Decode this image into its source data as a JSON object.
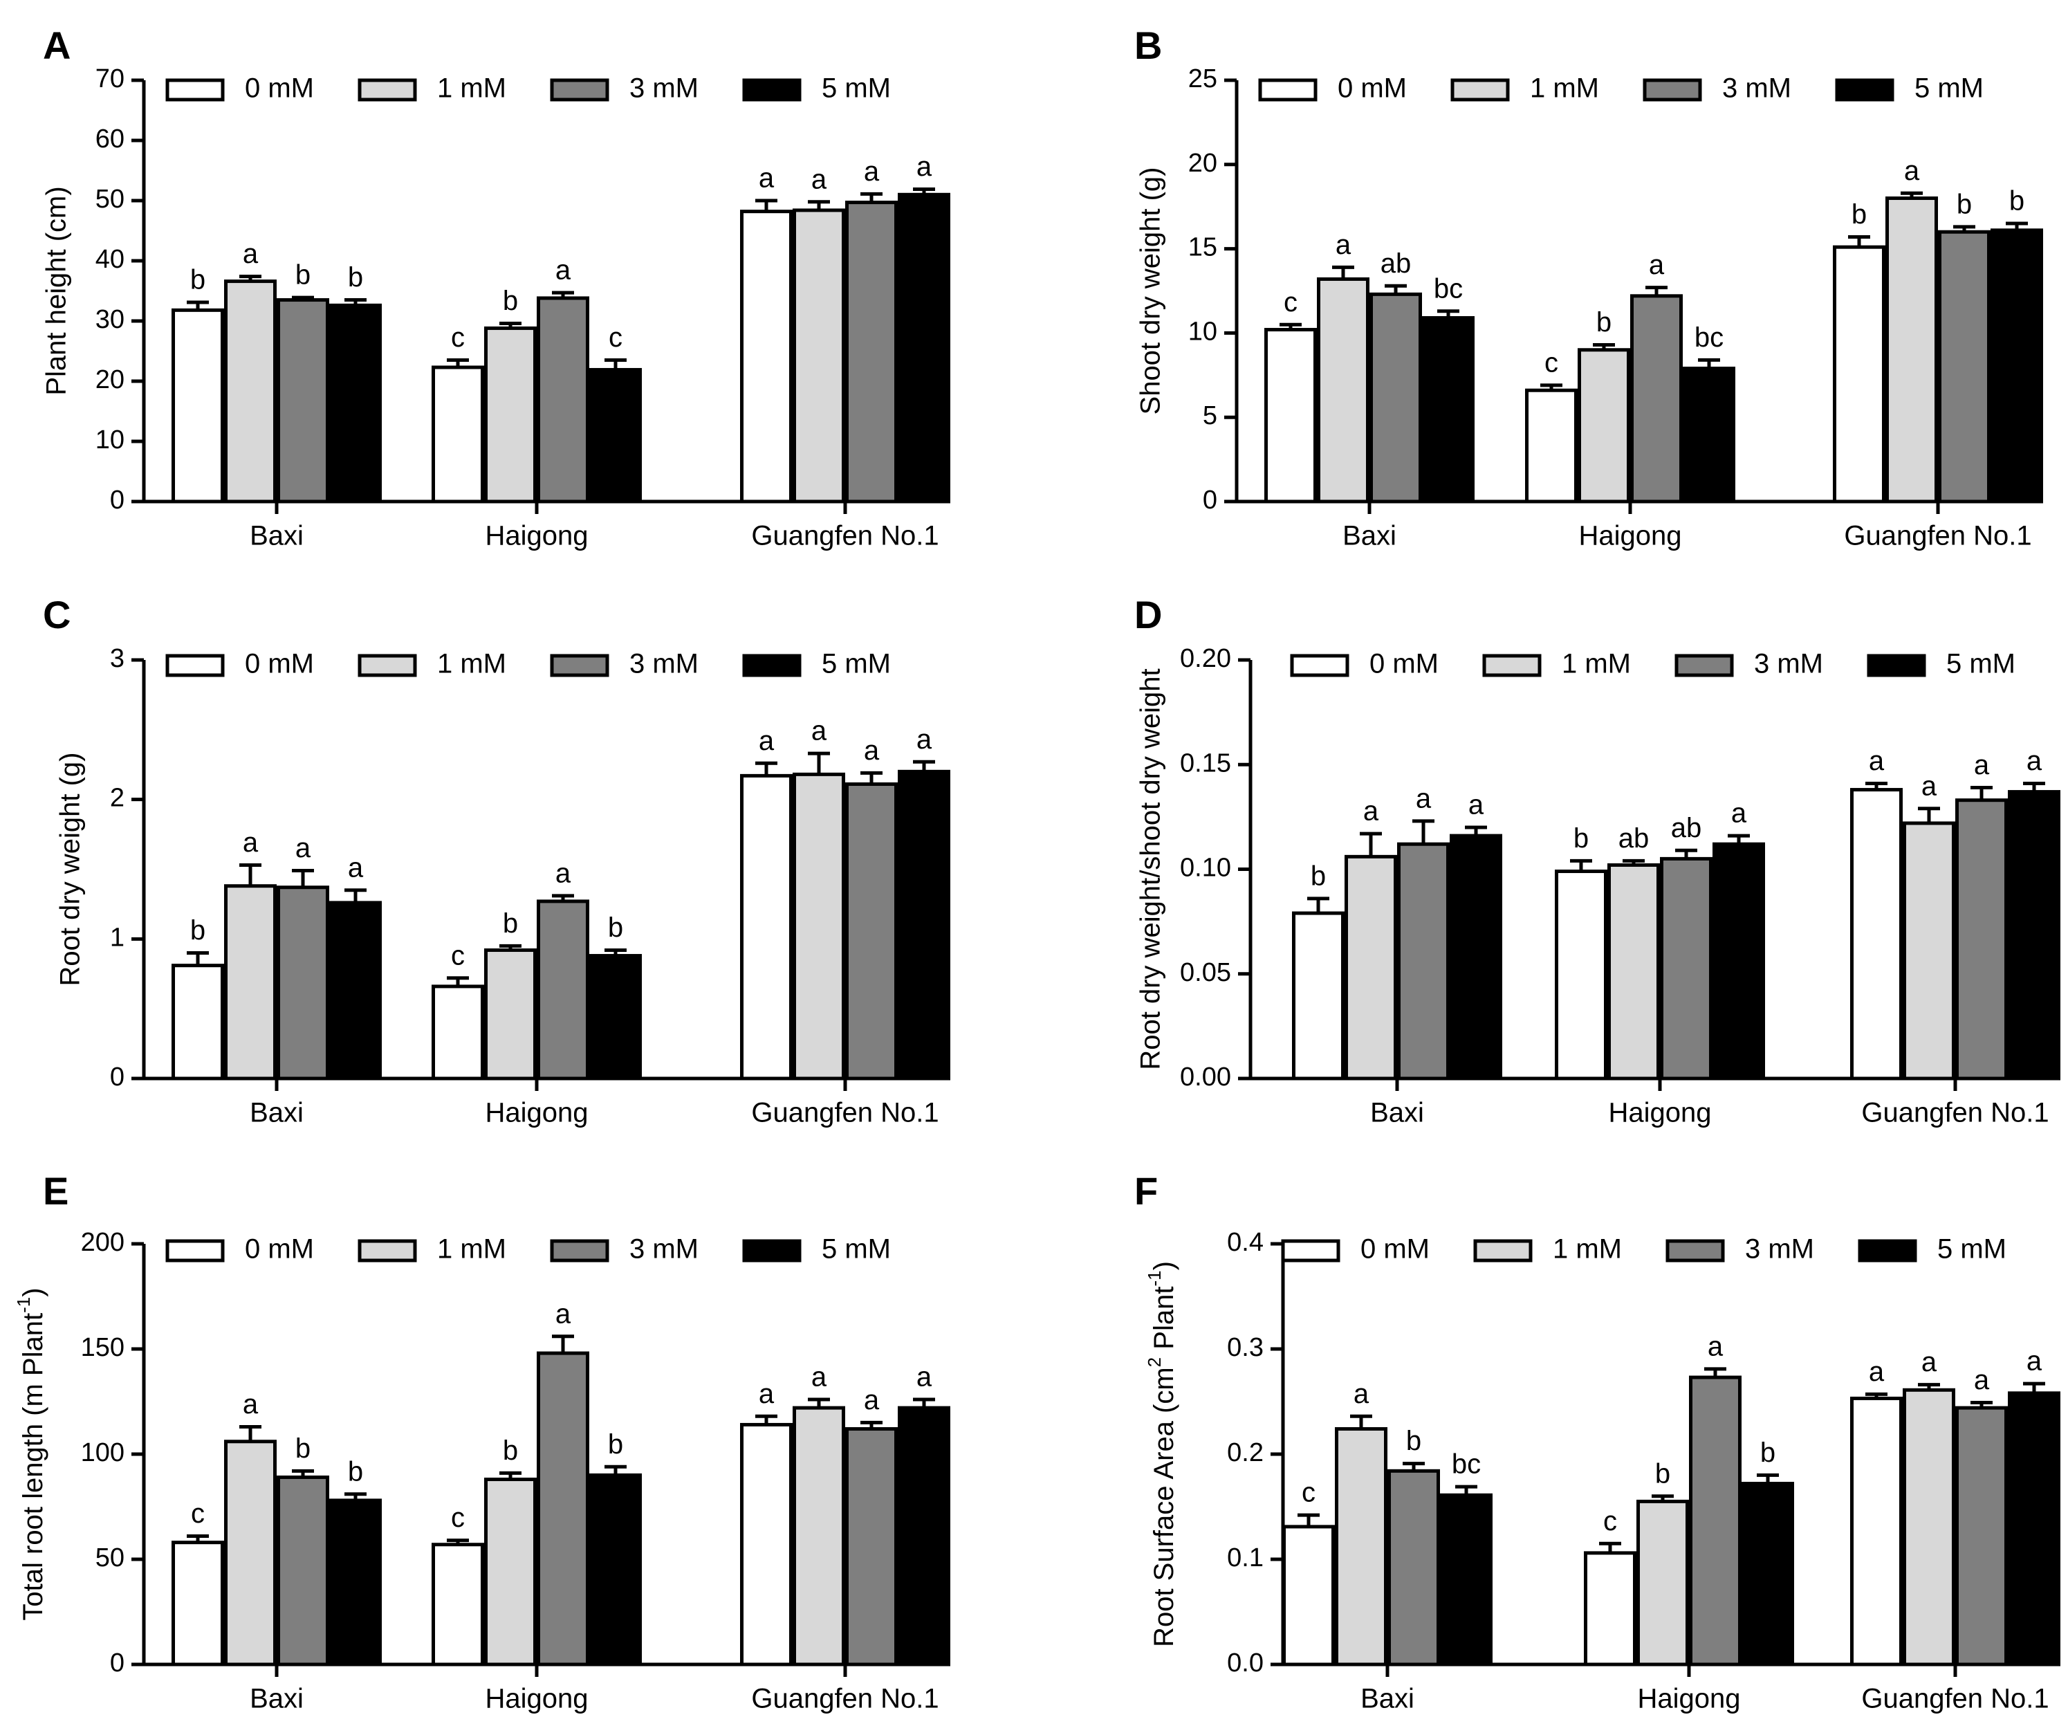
{
  "legend_labels": [
    "0 mM",
    "1 mM",
    "3 mM",
    "5 mM"
  ],
  "colors": {
    "series": [
      "#ffffff",
      "#d8d8d8",
      "#7f7f7f",
      "#000000"
    ],
    "stroke": "#000000",
    "text": "#000000"
  },
  "chart_data": [
    {
      "panel": "A",
      "type": "bar",
      "categories": [
        "Baxi",
        "Haigong",
        "Guangfen No.1"
      ],
      "ylabel": "Plant height (cm)",
      "xlabel": "",
      "ylim": [
        0,
        70
      ],
      "yticks": [
        0,
        10,
        20,
        30,
        40,
        50,
        60,
        70
      ],
      "ytick_labels": [
        "0",
        "10",
        "20",
        "30",
        "40",
        "50",
        "60",
        "70"
      ],
      "series": [
        {
          "name": "0 mM",
          "values": [
            31.8,
            22.3,
            48.2
          ],
          "errors": [
            1.3,
            1.2,
            1.8
          ],
          "letters": [
            "b",
            "c",
            "a"
          ]
        },
        {
          "name": "1 mM",
          "values": [
            36.6,
            28.8,
            48.4
          ],
          "errors": [
            0.8,
            0.8,
            1.4
          ],
          "letters": [
            "a",
            "b",
            "a"
          ]
        },
        {
          "name": "3 mM",
          "values": [
            33.5,
            33.8,
            49.7
          ],
          "errors": [
            0.4,
            0.9,
            1.4
          ],
          "letters": [
            "b",
            "a",
            "a"
          ]
        },
        {
          "name": "5 mM",
          "values": [
            32.6,
            21.9,
            51.0
          ],
          "errors": [
            0.9,
            1.6,
            0.9
          ],
          "letters": [
            "b",
            "c",
            "a"
          ]
        }
      ]
    },
    {
      "panel": "B",
      "type": "bar",
      "categories": [
        "Baxi",
        "Haigong",
        "Guangfen No.1"
      ],
      "ylabel": "Shoot dry weight (g)",
      "xlabel": "",
      "ylim": [
        0,
        25
      ],
      "yticks": [
        0,
        5,
        10,
        15,
        20,
        25
      ],
      "ytick_labels": [
        "0",
        "5",
        "10",
        "15",
        "20",
        "25"
      ],
      "series": [
        {
          "name": "0 mM",
          "values": [
            10.2,
            6.6,
            15.1
          ],
          "errors": [
            0.3,
            0.3,
            0.6
          ],
          "letters": [
            "c",
            "c",
            "b"
          ]
        },
        {
          "name": "1 mM",
          "values": [
            13.2,
            9.0,
            18.0
          ],
          "errors": [
            0.7,
            0.3,
            0.3
          ],
          "letters": [
            "a",
            "b",
            "a"
          ]
        },
        {
          "name": "3 mM",
          "values": [
            12.3,
            12.2,
            16.0
          ],
          "errors": [
            0.5,
            0.5,
            0.3
          ],
          "letters": [
            "ab",
            "a",
            "b"
          ]
        },
        {
          "name": "5 mM",
          "values": [
            10.9,
            7.9,
            16.1
          ],
          "errors": [
            0.4,
            0.5,
            0.4
          ],
          "letters": [
            "bc",
            "bc",
            "b"
          ]
        }
      ]
    },
    {
      "panel": "C",
      "type": "bar",
      "categories": [
        "Baxi",
        "Haigong",
        "Guangfen No.1"
      ],
      "ylabel": "Root dry weight (g)",
      "xlabel": "",
      "ylim": [
        0,
        3
      ],
      "yticks": [
        0,
        1,
        2,
        3
      ],
      "ytick_labels": [
        "0",
        "1",
        "2",
        "3"
      ],
      "series": [
        {
          "name": "0 mM",
          "values": [
            0.81,
            0.66,
            2.17
          ],
          "errors": [
            0.09,
            0.06,
            0.09
          ],
          "letters": [
            "b",
            "c",
            "a"
          ]
        },
        {
          "name": "1 mM",
          "values": [
            1.38,
            0.92,
            2.18
          ],
          "errors": [
            0.15,
            0.03,
            0.15
          ],
          "letters": [
            "a",
            "b",
            "a"
          ]
        },
        {
          "name": "3 mM",
          "values": [
            1.37,
            1.27,
            2.11
          ],
          "errors": [
            0.12,
            0.04,
            0.08
          ],
          "letters": [
            "a",
            "a",
            "a"
          ]
        },
        {
          "name": "5 mM",
          "values": [
            1.26,
            0.88,
            2.2
          ],
          "errors": [
            0.09,
            0.04,
            0.07
          ],
          "letters": [
            "a",
            "b",
            "a"
          ]
        }
      ]
    },
    {
      "panel": "D",
      "type": "bar",
      "categories": [
        "Baxi",
        "Haigong",
        "Guangfen No.1"
      ],
      "ylabel": "Root dry weight/shoot dry weight",
      "xlabel": "",
      "ylim": [
        0,
        0.2
      ],
      "yticks": [
        0,
        0.05,
        0.1,
        0.15,
        0.2
      ],
      "ytick_labels": [
        "0.00",
        "0.05",
        "0.10",
        "0.15",
        "0.20"
      ],
      "series": [
        {
          "name": "0 mM",
          "values": [
            0.079,
            0.099,
            0.138
          ],
          "errors": [
            0.007,
            0.005,
            0.003
          ],
          "letters": [
            "b",
            "b",
            "a"
          ]
        },
        {
          "name": "1 mM",
          "values": [
            0.106,
            0.102,
            0.122
          ],
          "errors": [
            0.011,
            0.002,
            0.007
          ],
          "letters": [
            "a",
            "ab",
            "a"
          ]
        },
        {
          "name": "3 mM",
          "values": [
            0.112,
            0.105,
            0.133
          ],
          "errors": [
            0.011,
            0.004,
            0.006
          ],
          "letters": [
            "a",
            "ab",
            "a"
          ]
        },
        {
          "name": "5 mM",
          "values": [
            0.116,
            0.112,
            0.137
          ],
          "errors": [
            0.004,
            0.004,
            0.004
          ],
          "letters": [
            "a",
            "a",
            "a"
          ]
        }
      ]
    },
    {
      "panel": "E",
      "type": "bar",
      "categories": [
        "Baxi",
        "Haigong",
        "Guangfen No.1"
      ],
      "ylabel": "Total root length (m Plant -1)",
      "ylabel_parts": [
        "Total root length (m  Plant",
        "-1",
        ")"
      ],
      "xlabel": "",
      "ylim": [
        0,
        200
      ],
      "yticks": [
        0,
        50,
        100,
        150,
        200
      ],
      "ytick_labels": [
        "0",
        "50",
        "100",
        "150",
        "200"
      ],
      "series": [
        {
          "name": "0 mM",
          "values": [
            58,
            57,
            114
          ],
          "errors": [
            3,
            2,
            4
          ],
          "letters": [
            "c",
            "c",
            "a"
          ]
        },
        {
          "name": "1 mM",
          "values": [
            106,
            88,
            122
          ],
          "errors": [
            7,
            3,
            4
          ],
          "letters": [
            "a",
            "b",
            "a"
          ]
        },
        {
          "name": "3 mM",
          "values": [
            89,
            148,
            112
          ],
          "errors": [
            3,
            8,
            3
          ],
          "letters": [
            "b",
            "a",
            "a"
          ]
        },
        {
          "name": "5 mM",
          "values": [
            78,
            90,
            122
          ],
          "errors": [
            3,
            4,
            4
          ],
          "letters": [
            "b",
            "b",
            "a"
          ]
        }
      ]
    },
    {
      "panel": "F",
      "type": "bar",
      "categories": [
        "Baxi",
        "Haigong",
        "Guangfen No.1"
      ],
      "ylabel": "Root Surface Area (cm2 Plant-1)",
      "ylabel_parts": [
        "Root Surface Area (cm",
        "2",
        "  Plant",
        "-1",
        ")"
      ],
      "xlabel": "",
      "ylim": [
        0,
        0.4
      ],
      "yticks": [
        0,
        0.1,
        0.2,
        0.3,
        0.4
      ],
      "ytick_labels": [
        "0.0",
        "0.1",
        "0.2",
        "0.3",
        "0.4"
      ],
      "series": [
        {
          "name": "0 mM",
          "values": [
            0.131,
            0.106,
            0.253
          ],
          "errors": [
            0.011,
            0.009,
            0.004
          ],
          "letters": [
            "c",
            "c",
            "a"
          ]
        },
        {
          "name": "1 mM",
          "values": [
            0.224,
            0.155,
            0.261
          ],
          "errors": [
            0.012,
            0.005,
            0.005
          ],
          "letters": [
            "a",
            "b",
            "a"
          ]
        },
        {
          "name": "3 mM",
          "values": [
            0.184,
            0.273,
            0.244
          ],
          "errors": [
            0.007,
            0.008,
            0.005
          ],
          "letters": [
            "b",
            "a",
            "a"
          ]
        },
        {
          "name": "5 mM",
          "values": [
            0.161,
            0.172,
            0.258
          ],
          "errors": [
            0.008,
            0.008,
            0.009
          ],
          "letters": [
            "bc",
            "b",
            "a"
          ]
        }
      ]
    }
  ]
}
